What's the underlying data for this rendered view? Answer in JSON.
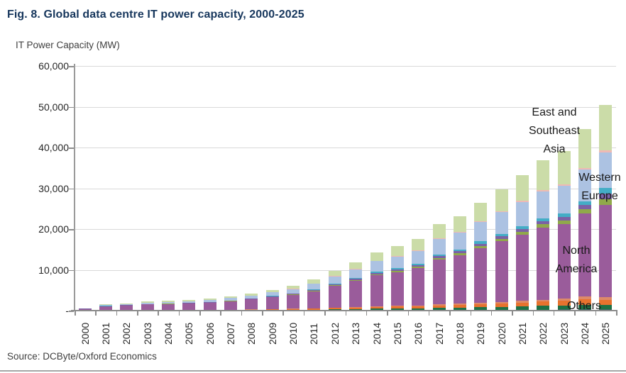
{
  "figure": {
    "title": "Fig. 8. Global data centre IT power capacity, 2000-2025",
    "y_axis_title": "IT Power Capacity (MW)",
    "source": "Source: DCByte/Oxford Economics"
  },
  "y_axis": {
    "ticks": [
      {
        "label": "60,000",
        "value": 60000
      },
      {
        "label": "50,000",
        "value": 50000
      },
      {
        "label": "40,000",
        "value": 40000
      },
      {
        "label": "30,000",
        "value": 30000
      },
      {
        "label": "20,000",
        "value": 20000
      },
      {
        "label": "10,000",
        "value": 10000
      },
      {
        "label": "-",
        "value": 0
      }
    ]
  },
  "annotations": {
    "east_southeast_asia": {
      "text": "East and\nSoutheast\nAsia"
    },
    "western_europe": {
      "text": "Western\nEurope"
    },
    "north_america": {
      "text": "North\nAmerica"
    },
    "others": {
      "text": "Others"
    }
  },
  "chart_data": {
    "type": "bar",
    "stacked": true,
    "title": "Fig. 8. Global data centre IT power capacity, 2000-2025",
    "xlabel": "",
    "ylabel": "IT Power Capacity (MW)",
    "ylim": [
      0,
      60000
    ],
    "grid": "horizontal",
    "legend_position": "in-plot annotations (right side)",
    "categories": [
      "2000",
      "2001",
      "2002",
      "2003",
      "2004",
      "2005",
      "2006",
      "2007",
      "2008",
      "2009",
      "2010",
      "2011",
      "2012",
      "2013",
      "2014",
      "2015",
      "2016",
      "2017",
      "2018",
      "2019",
      "2020",
      "2021",
      "2022",
      "2023",
      "2024",
      "2025"
    ],
    "series": [
      {
        "name": "Others (dark teal band)",
        "group": "Others",
        "color": "#35635E",
        "values": [
          4,
          11,
          13,
          16,
          17,
          19,
          21,
          25,
          32,
          38,
          47,
          58,
          74,
          86,
          104,
          115,
          127,
          154,
          168,
          191,
          209,
          232,
          262,
          282,
          336,
          300
        ]
      },
      {
        "name": "Others (dark green band)",
        "group": "Others",
        "color": "#1E7145",
        "values": [
          15,
          36,
          43,
          54,
          59,
          64,
          71,
          86,
          107,
          130,
          161,
          196,
          250,
          293,
          352,
          389,
          431,
          523,
          572,
          651,
          709,
          790,
          891,
          960,
          1142,
          1100
        ]
      },
      {
        "name": "Others (orange band)",
        "group": "Others",
        "color": "#E8722E",
        "values": [
          17,
          42,
          50,
          64,
          70,
          75,
          84,
          101,
          126,
          153,
          189,
          231,
          294,
          345,
          415,
          458,
          507,
          615,
          673,
          766,
          834,
          930,
          1048,
          1129,
          1344,
          1300
        ]
      },
      {
        "name": "Others (salmon band)",
        "group": "Others",
        "color": "#DD8A69",
        "values": [
          8,
          19,
          23,
          29,
          31,
          34,
          38,
          46,
          57,
          69,
          85,
          104,
          132,
          155,
          187,
          206,
          228,
          277,
          303,
          344,
          375,
          418,
          472,
          508,
          605,
          600
        ]
      },
      {
        "name": "North America",
        "group": "North America",
        "color": "#9A5C9B",
        "values": [
          378,
          945,
          1116,
          1342,
          1440,
          1547,
          1711,
          2030,
          2394,
          2856,
          3355,
          4197,
          5292,
          6367,
          7579,
          8295,
          9100,
          10918,
          11832,
          13332,
          14900,
          16268,
          17712,
          18424,
          20470,
          22600
        ]
      },
      {
        "name": "Others (olive band)",
        "group": "Others",
        "color": "#90A94A",
        "values": [
          13,
          32,
          38,
          48,
          52,
          57,
          63,
          76,
          95,
          115,
          142,
          173,
          220,
          259,
          311,
          344,
          381,
          461,
          505,
          574,
          626,
          697,
          786,
          847,
          1008,
          1400
        ]
      },
      {
        "name": "Others (violet band)",
        "group": "Others",
        "color": "#7B61A5",
        "values": [
          13,
          32,
          38,
          48,
          52,
          57,
          63,
          76,
          95,
          115,
          142,
          173,
          220,
          259,
          311,
          344,
          381,
          461,
          505,
          574,
          626,
          697,
          786,
          847,
          1008,
          1400
        ]
      },
      {
        "name": "Others (light teal band)",
        "group": "Others",
        "color": "#43ADC6",
        "values": [
          12,
          29,
          35,
          45,
          49,
          53,
          59,
          71,
          88,
          107,
          132,
          162,
          206,
          242,
          290,
          321,
          355,
          430,
          471,
          536,
          584,
          651,
          734,
          790,
          941,
          1400
        ]
      },
      {
        "name": "Western Europe",
        "group": "Western Europe",
        "color": "#ACC2E2",
        "values": [
          90,
          225,
          279,
          341,
          384,
          416,
          464,
          578,
          693,
          867,
          1037,
          1348,
          1715,
          2142,
          2574,
          2844,
          3150,
          3816,
          4176,
          4752,
          5364,
          5976,
          6568,
          6899,
          7743,
          8700
        ]
      },
      {
        "name": "Others (pink band)",
        "group": "Others",
        "color": "#EFB9B4",
        "values": [
          5,
          9,
          12,
          15,
          18,
          18,
          21,
          26,
          30,
          38,
          47,
          58,
          74,
          86,
          103,
          114,
          127,
          153,
          167,
          192,
          209,
          233,
          261,
          282,
          335,
          450
        ]
      },
      {
        "name": "East and Southeast Asia",
        "group": "East and Southeast Asia",
        "color": "#CBDCA8",
        "values": [
          45,
          120,
          153,
          198,
          228,
          260,
          305,
          385,
          483,
          612,
          763,
          1001,
          1323,
          1666,
          2074,
          2370,
          2713,
          3392,
          3828,
          4488,
          5364,
          6308,
          7380,
          8232,
          9568,
          11250
        ]
      }
    ],
    "approx_totals": [
      600,
      1500,
      1800,
      2200,
      2400,
      2600,
      2900,
      3500,
      4200,
      5100,
      6100,
      7700,
      9800,
      11900,
      14300,
      15800,
      17500,
      21200,
      23200,
      26400,
      29800,
      33200,
      36900,
      39200,
      44500,
      50500
    ]
  }
}
